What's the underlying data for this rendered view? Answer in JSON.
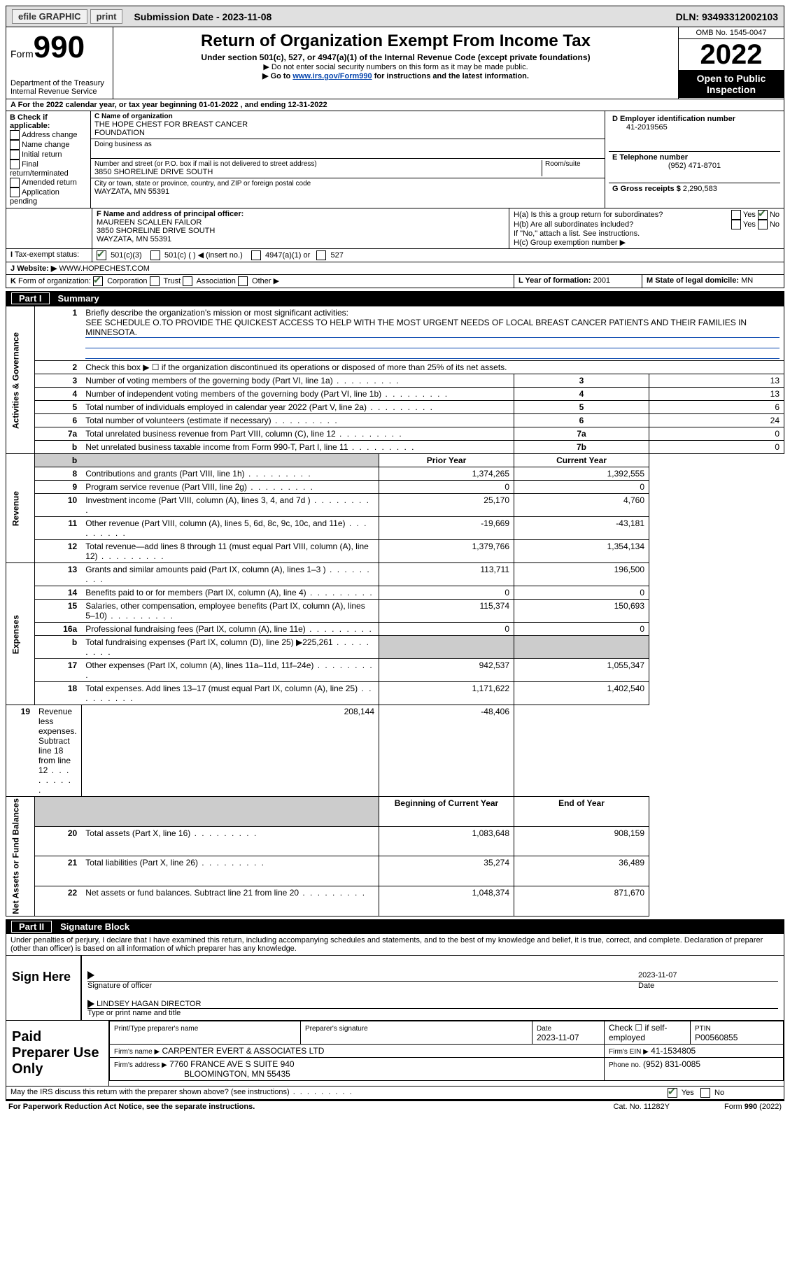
{
  "topbar": {
    "efile": "efile GRAPHIC",
    "print": "print",
    "sub_label": "Submission Date - 2023-11-08",
    "dln": "DLN: 93493312002103"
  },
  "header": {
    "form_word": "Form",
    "form_num": "990",
    "dept1": "Department of the Treasury",
    "dept2": "Internal Revenue Service",
    "title": "Return of Organization Exempt From Income Tax",
    "sub1": "Under section 501(c), 527, or 4947(a)(1) of the Internal Revenue Code (except private foundations)",
    "sub2": "▶ Do not enter social security numbers on this form as it may be made public.",
    "sub3_pre": "▶ Go to ",
    "sub3_link": "www.irs.gov/Form990",
    "sub3_post": " for instructions and the latest information.",
    "omb": "OMB No. 1545-0047",
    "year": "2022",
    "otp": "Open to Public Inspection"
  },
  "line_a": {
    "pre": "A",
    "text": "For the 2022 calendar year, or tax year beginning 01-01-2022",
    "mid": ", and ending 12-31-2022"
  },
  "b": {
    "label": "B Check if applicable:",
    "opt1": "Address change",
    "opt2": "Name change",
    "opt3": "Initial return",
    "opt4": "Final return/terminated",
    "opt5": "Amended return",
    "opt6": "Application pending"
  },
  "c": {
    "label": "C Name of organization",
    "name1": "THE HOPE CHEST FOR BREAST CANCER",
    "name2": "FOUNDATION",
    "dba": "Doing business as",
    "addr_label": "Number and street (or P.O. box if mail is not delivered to street address)",
    "room": "Room/suite",
    "addr": "3850 SHORELINE DRIVE SOUTH",
    "city_label": "City or town, state or province, country, and ZIP or foreign postal code",
    "city": "WAYZATA, MN  55391"
  },
  "d": {
    "label": "D Employer identification number",
    "val": "41-2019565",
    "e_label": "E Telephone number",
    "e_val": "(952) 471-8701",
    "g_label": "G Gross receipts $",
    "g_val": "2,290,583"
  },
  "f": {
    "label": "F Name and address of principal officer:",
    "l1": "MAUREEN SCALLEN FAILOR",
    "l2": "3850 SHORELINE DRIVE SOUTH",
    "l3": "WAYZATA, MN  55391"
  },
  "h": {
    "a": "H(a)  Is this a group return for subordinates?",
    "b": "H(b)  Are all subordinates included?",
    "b2": "If \"No,\" attach a list. See instructions.",
    "c": "H(c)  Group exemption number ▶",
    "yes": "Yes",
    "no": "No"
  },
  "i": {
    "label": "I",
    "text": "Tax-exempt status:",
    "o1": "501(c)(3)",
    "o2": "501(c) (  ) ◀ (insert no.)",
    "o3": "4947(a)(1) or",
    "o4": "527"
  },
  "j": {
    "label": "J",
    "text": "Website: ▶",
    "val": "WWW.HOPECHEST.COM"
  },
  "k": {
    "label": "K",
    "text": "Form of organization:",
    "o1": "Corporation",
    "o2": "Trust",
    "o3": "Association",
    "o4": "Other ▶",
    "l_label": "L Year of formation:",
    "l_val": "2001",
    "m_label": "M State of legal domicile:",
    "m_val": "MN"
  },
  "part1": {
    "num": "Part I",
    "title": "Summary",
    "l1a": "Briefly describe the organization's mission or most significant activities:",
    "l1b": "SEE SCHEDULE O.TO PROVIDE THE QUICKEST ACCESS TO HELP WITH THE MOST URGENT NEEDS OF LOCAL BREAST CANCER PATIENTS AND THEIR FAMILIES IN MINNESOTA.",
    "l2": "Check this box ▶ ☐ if the organization discontinued its operations or disposed of more than 25% of its net assets.",
    "vert_activities": "Activities & Governance",
    "vert_revenue": "Revenue",
    "vert_expenses": "Expenses",
    "vert_net": "Net Assets or Fund Balances"
  },
  "summary_lines": {
    "l3": {
      "n": "3",
      "d": "Number of voting members of the governing body (Part VI, line 1a)",
      "box": "3",
      "cur": "13"
    },
    "l4": {
      "n": "4",
      "d": "Number of independent voting members of the governing body (Part VI, line 1b)",
      "box": "4",
      "cur": "13"
    },
    "l5": {
      "n": "5",
      "d": "Total number of individuals employed in calendar year 2022 (Part V, line 2a)",
      "box": "5",
      "cur": "6"
    },
    "l6": {
      "n": "6",
      "d": "Total number of volunteers (estimate if necessary)",
      "box": "6",
      "cur": "24"
    },
    "l7a": {
      "n": "7a",
      "d": "Total unrelated business revenue from Part VIII, column (C), line 12",
      "box": "7a",
      "cur": "0"
    },
    "l7b": {
      "n": "b",
      "d": "Net unrelated business taxable income from Form 990-T, Part I, line 11",
      "box": "7b",
      "cur": "0"
    }
  },
  "cols": {
    "prior": "Prior Year",
    "current": "Current Year",
    "bocy": "Beginning of Current Year",
    "eoy": "End of Year"
  },
  "revenue_lines": [
    {
      "n": "8",
      "d": "Contributions and grants (Part VIII, line 1h)",
      "py": "1,374,265",
      "cy": "1,392,555"
    },
    {
      "n": "9",
      "d": "Program service revenue (Part VIII, line 2g)",
      "py": "0",
      "cy": "0"
    },
    {
      "n": "10",
      "d": "Investment income (Part VIII, column (A), lines 3, 4, and 7d )",
      "py": "25,170",
      "cy": "4,760"
    },
    {
      "n": "11",
      "d": "Other revenue (Part VIII, column (A), lines 5, 6d, 8c, 9c, 10c, and 11e)",
      "py": "-19,669",
      "cy": "-43,181"
    },
    {
      "n": "12",
      "d": "Total revenue—add lines 8 through 11 (must equal Part VIII, column (A), line 12)",
      "py": "1,379,766",
      "cy": "1,354,134"
    }
  ],
  "expense_lines": [
    {
      "n": "13",
      "d": "Grants and similar amounts paid (Part IX, column (A), lines 1–3 )",
      "py": "113,711",
      "cy": "196,500"
    },
    {
      "n": "14",
      "d": "Benefits paid to or for members (Part IX, column (A), line 4)",
      "py": "0",
      "cy": "0"
    },
    {
      "n": "15",
      "d": "Salaries, other compensation, employee benefits (Part IX, column (A), lines 5–10)",
      "py": "115,374",
      "cy": "150,693"
    },
    {
      "n": "16a",
      "d": "Professional fundraising fees (Part IX, column (A), line 11e)",
      "py": "0",
      "cy": "0"
    },
    {
      "n": "b",
      "d": "Total fundraising expenses (Part IX, column (D), line 25) ▶225,261",
      "py": "",
      "cy": "",
      "grey": true
    },
    {
      "n": "17",
      "d": "Other expenses (Part IX, column (A), lines 11a–11d, 11f–24e)",
      "py": "942,537",
      "cy": "1,055,347"
    },
    {
      "n": "18",
      "d": "Total expenses. Add lines 13–17 (must equal Part IX, column (A), line 25)",
      "py": "1,171,622",
      "cy": "1,402,540"
    },
    {
      "n": "19",
      "d": "Revenue less expenses. Subtract line 18 from line 12",
      "py": "208,144",
      "cy": "-48,406"
    }
  ],
  "net_lines": [
    {
      "n": "20",
      "d": "Total assets (Part X, line 16)",
      "py": "1,083,648",
      "cy": "908,159"
    },
    {
      "n": "21",
      "d": "Total liabilities (Part X, line 26)",
      "py": "35,274",
      "cy": "36,489"
    },
    {
      "n": "22",
      "d": "Net assets or fund balances. Subtract line 21 from line 20",
      "py": "1,048,374",
      "cy": "871,670"
    }
  ],
  "part2": {
    "num": "Part II",
    "title": "Signature Block",
    "perjury": "Under penalties of perjury, I declare that I have examined this return, including accompanying schedules and statements, and to the best of my knowledge and belief, it is true, correct, and complete. Declaration of preparer (other than officer) is based on all information of which preparer has any knowledge."
  },
  "sign": {
    "here": "Sign Here",
    "sig_label": "Signature of officer",
    "date_label": "Date",
    "date_val": "2023-11-07",
    "name": "LINDSEY HAGAN  DIRECTOR",
    "name_label": "Type or print name and title"
  },
  "prep": {
    "title": "Paid Preparer Use Only",
    "pname": "Print/Type preparer's name",
    "psig": "Preparer's signature",
    "pdate_l": "Date",
    "pdate": "2023-11-07",
    "check_l": "Check ☐ if self-employed",
    "ptin_l": "PTIN",
    "ptin": "P00560855",
    "firm_l": "Firm's name    ▶",
    "firm": "CARPENTER EVERT & ASSOCIATES LTD",
    "fein_l": "Firm's EIN ▶",
    "fein": "41-1534805",
    "faddr_l": "Firm's address ▶",
    "faddr1": "7760 FRANCE AVE S SUITE 940",
    "faddr2": "BLOOMINGTON, MN  55435",
    "fphone_l": "Phone no.",
    "fphone": "(952) 831-0085"
  },
  "footer": {
    "discuss": "May the IRS discuss this return with the preparer shown above? (see instructions)",
    "yes": "Yes",
    "no": "No",
    "pra": "For Paperwork Reduction Act Notice, see the separate instructions.",
    "cat": "Cat. No. 11282Y",
    "form": "Form 990 (2022)"
  }
}
